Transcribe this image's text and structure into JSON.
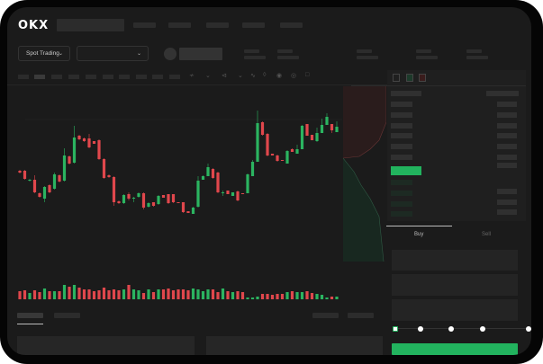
{
  "header": {
    "logo": "OKX"
  },
  "controls": {
    "market_select": "Spot Trading",
    "pair_select": ""
  },
  "trade_panel": {
    "tabs": [
      "Buy",
      "Sell"
    ],
    "active_tab": "Buy",
    "leverage_steps": 5,
    "selected_step": 0
  },
  "colors": {
    "up": "#2bb460",
    "down": "#e0474c",
    "background": "#1b1b1b",
    "accent": "#22b35e"
  },
  "icons": [
    "chevron-down-icon",
    "indicator-icon",
    "line-tool-icon",
    "ruler-icon",
    "camera-icon",
    "settings-icon",
    "fullscreen-icon",
    "orderbook-both-icon",
    "orderbook-bids-icon",
    "orderbook-asks-icon"
  ],
  "candles": [
    [
      68,
      66,
      69,
      65
    ],
    [
      68,
      59,
      69,
      58
    ],
    [
      57,
      58,
      59,
      56
    ],
    [
      58,
      44,
      63,
      43
    ],
    [
      43,
      39,
      44,
      38
    ],
    [
      37,
      50,
      51,
      33
    ],
    [
      52,
      44,
      53,
      43
    ],
    [
      48,
      64,
      66,
      47
    ],
    [
      63,
      56,
      64,
      55
    ],
    [
      57,
      85,
      93,
      56
    ],
    [
      84,
      76,
      85,
      75
    ],
    [
      77,
      105,
      118,
      76
    ],
    [
      107,
      103,
      108,
      102
    ],
    [
      104,
      101,
      105,
      100
    ],
    [
      104,
      94,
      109,
      93
    ],
    [
      101,
      98,
      101,
      98
    ],
    [
      102,
      81,
      103,
      80
    ],
    [
      81,
      60,
      82,
      59
    ],
    [
      63,
      61,
      64,
      60
    ],
    [
      61,
      33,
      62,
      29
    ],
    [
      34,
      32,
      35,
      31
    ],
    [
      32,
      41,
      42,
      31
    ],
    [
      42,
      37,
      44,
      35
    ],
    [
      37,
      38,
      39,
      33
    ],
    [
      39,
      43,
      44,
      38
    ],
    [
      43,
      27,
      44,
      25
    ],
    [
      28,
      32,
      33,
      27
    ],
    [
      33,
      29,
      33,
      28
    ],
    [
      31,
      40,
      41,
      30
    ],
    [
      41,
      38,
      41,
      38
    ],
    [
      42,
      32,
      42,
      31
    ],
    [
      42,
      33,
      42,
      32
    ],
    [
      33,
      32,
      33,
      32
    ],
    [
      33,
      22,
      33,
      21
    ],
    [
      23,
      21,
      23,
      21
    ],
    [
      20,
      27,
      28,
      20
    ],
    [
      28,
      57,
      62,
      27
    ],
    [
      58,
      62,
      63,
      58
    ],
    [
      62,
      72,
      76,
      62
    ],
    [
      70,
      60,
      71,
      59
    ],
    [
      66,
      44,
      67,
      43
    ],
    [
      43,
      44,
      46,
      40
    ],
    [
      46,
      42,
      46,
      42
    ],
    [
      40,
      44,
      44,
      40
    ],
    [
      45,
      35,
      46,
      34
    ],
    [
      43,
      42,
      43,
      42
    ],
    [
      43,
      64,
      65,
      43
    ],
    [
      62,
      78,
      80,
      62
    ],
    [
      78,
      121,
      135,
      78
    ],
    [
      122,
      108,
      123,
      107
    ],
    [
      109,
      85,
      110,
      84
    ],
    [
      87,
      85,
      87,
      85
    ],
    [
      85,
      79,
      86,
      78
    ],
    [
      80,
      79,
      80,
      79
    ],
    [
      76,
      90,
      91,
      76
    ],
    [
      92,
      89,
      93,
      89
    ],
    [
      87,
      92,
      97,
      87
    ],
    [
      92,
      118,
      119,
      92
    ],
    [
      120,
      107,
      120,
      107
    ],
    [
      108,
      102,
      108,
      102
    ],
    [
      101,
      110,
      116,
      100
    ],
    [
      110,
      119,
      126,
      110
    ],
    [
      119,
      128,
      132,
      119
    ],
    [
      120,
      113,
      120,
      110
    ],
    [
      111,
      117,
      123,
      111
    ]
  ],
  "volume": [
    9,
    10,
    7,
    10,
    8,
    12,
    9,
    9,
    9,
    16,
    14,
    16,
    13,
    11,
    11,
    9,
    10,
    13,
    10,
    11,
    10,
    11,
    16,
    11,
    10,
    7,
    11,
    8,
    11,
    11,
    12,
    10,
    11,
    11,
    10,
    12,
    11,
    9,
    11,
    11,
    8,
    12,
    9,
    8,
    9,
    8,
    2,
    2,
    3,
    6,
    6,
    5,
    6,
    6,
    8,
    9,
    8,
    8,
    9,
    7,
    6,
    5,
    2,
    3,
    3
  ]
}
